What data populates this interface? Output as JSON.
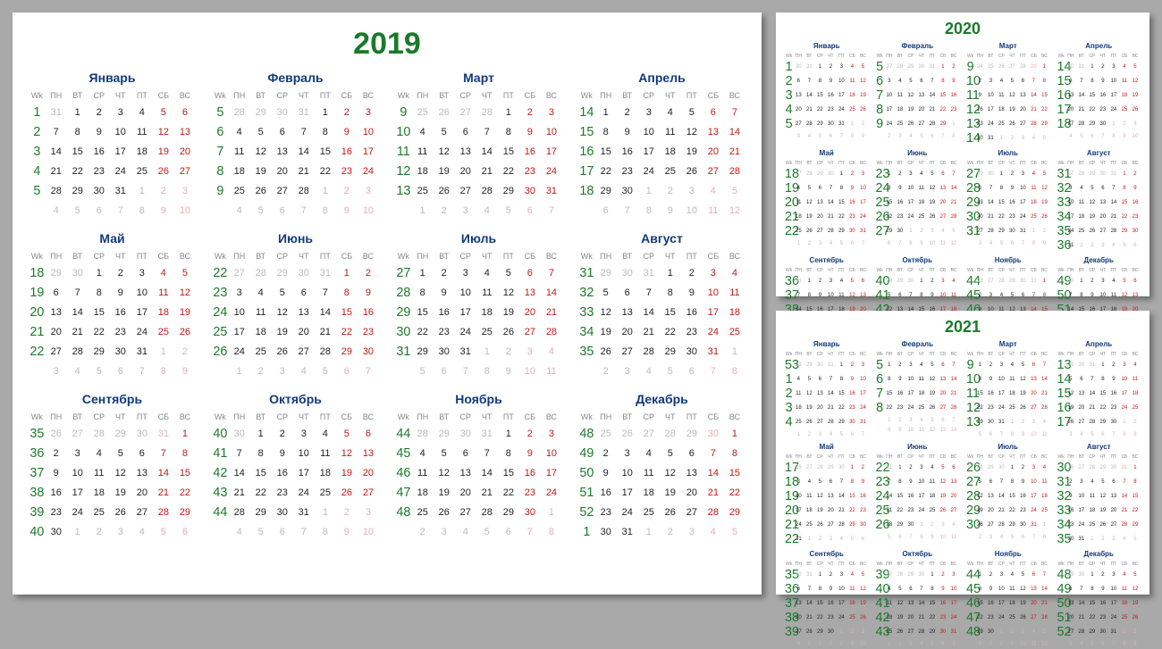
{
  "wk_label": "Wk",
  "day_headers": [
    "ПН",
    "ВТ",
    "СР",
    "ЧТ",
    "ПТ",
    "СБ",
    "ВС"
  ],
  "month_names": [
    "Январь",
    "Февраль",
    "Март",
    "Апрель",
    "Май",
    "Июнь",
    "Июль",
    "Август",
    "Сентябрь",
    "Октябрь",
    "Ноябрь",
    "Декабрь"
  ],
  "colors": {
    "year_title": "#1b7a2a",
    "month_title": "#123a7a",
    "weekend": "#c01818",
    "week_no": "#1b7a2a",
    "other_month": "#bbbbbb",
    "panel_bg": "#ffffff",
    "page_bg": "#a9a9a9"
  },
  "panels": [
    {
      "year": 2019,
      "class": "main"
    },
    {
      "year": 2020,
      "class": "side a"
    },
    {
      "year": 2021,
      "class": "side b"
    }
  ],
  "calendars": {
    "2019": {
      "jan1_dow": 1,
      "jan1_iso_week": 1,
      "month_lengths": [
        31,
        28,
        31,
        30,
        31,
        30,
        31,
        31,
        30,
        31,
        30,
        31
      ]
    },
    "2020": {
      "jan1_dow": 2,
      "jan1_iso_week": 1,
      "month_lengths": [
        31,
        29,
        31,
        30,
        31,
        30,
        31,
        31,
        30,
        31,
        30,
        31
      ]
    },
    "2021": {
      "jan1_dow": 4,
      "jan1_iso_week": 53,
      "month_lengths": [
        31,
        28,
        31,
        30,
        31,
        30,
        31,
        31,
        30,
        31,
        30,
        31
      ]
    }
  }
}
